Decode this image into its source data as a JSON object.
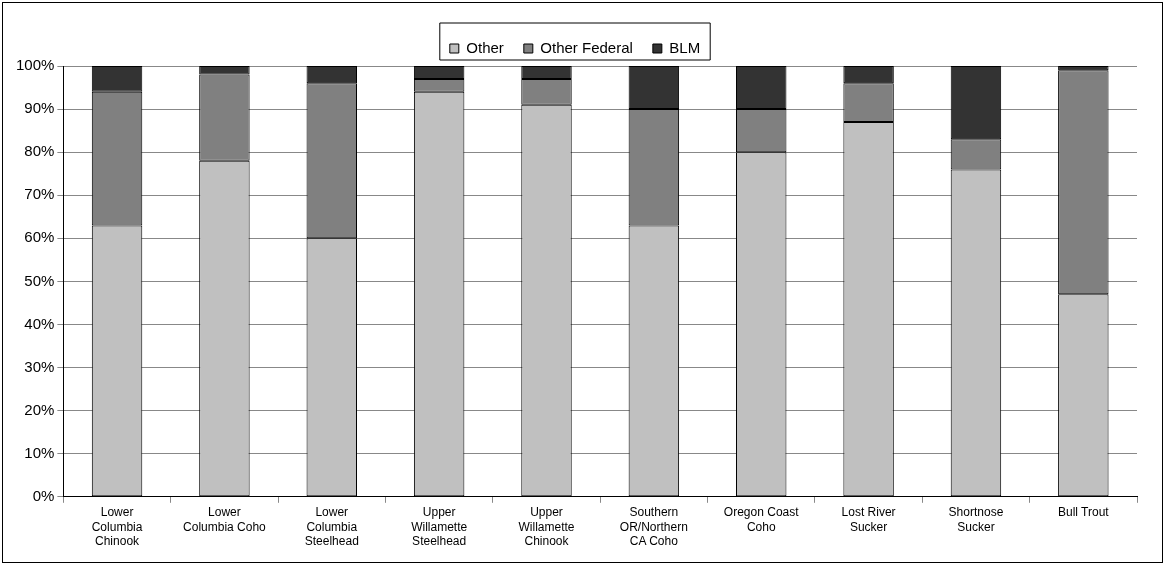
{
  "chart_data": {
    "type": "bar",
    "stacked": true,
    "legend": "top",
    "grid": "y",
    "categories": [
      "Lower Columbia Chinook",
      "Lower Columbia Coho",
      "Lower Columbia Steelhead",
      "Upper Willamette Steelhead",
      "Upper Willamette Chinook",
      "Southern OR/Northern CA Coho",
      "Oregon Coast Coho",
      "Lost River Sucker",
      "Shortnose Sucker",
      "Bull Trout"
    ],
    "series": [
      {
        "name": "Other",
        "color": "#c0c0c0",
        "values": [
          63,
          78,
          60,
          94,
          91,
          63,
          80,
          87,
          76,
          47
        ]
      },
      {
        "name": "Other Federal",
        "color": "#808080",
        "values": [
          31,
          20,
          36,
          3,
          6,
          27,
          10,
          9,
          7,
          52
        ]
      },
      {
        "name": "BLM",
        "color": "#333333",
        "values": [
          6,
          2,
          4,
          3,
          3,
          10,
          10,
          4,
          17,
          1
        ]
      }
    ],
    "ylim": [
      0,
      100
    ],
    "yticks": [
      {
        "value": 0,
        "label": "0%"
      },
      {
        "value": 10,
        "label": "10%"
      },
      {
        "value": 20,
        "label": "20%"
      },
      {
        "value": 30,
        "label": "30%"
      },
      {
        "value": 40,
        "label": "40%"
      },
      {
        "value": 50,
        "label": "50%"
      },
      {
        "value": 60,
        "label": "60%"
      },
      {
        "value": 70,
        "label": "70%"
      },
      {
        "value": 80,
        "label": "80%"
      },
      {
        "value": 90,
        "label": "90%"
      },
      {
        "value": 100,
        "label": "100%"
      }
    ]
  }
}
